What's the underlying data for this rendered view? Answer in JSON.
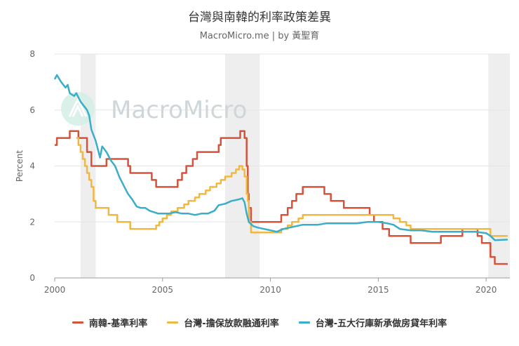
{
  "title": "台灣與南韓的利率政策差異",
  "subtitle": "MacroMicro.me | by 黃聖育",
  "watermark": "MacroMicro",
  "colors": {
    "korea": "#d4533a",
    "tw_secured": "#f0b840",
    "tw_mortgage": "#3aaec8",
    "band": "#eeeeee",
    "grid": "#e6e6e6"
  },
  "chart_data": {
    "type": "line",
    "title": "台灣與南韓的利率政策差異",
    "xlabel": "",
    "ylabel": "Percent",
    "xlim": [
      2000,
      2021.1
    ],
    "ylim": [
      0,
      8
    ],
    "x_ticks": [
      2000,
      2005,
      2010,
      2015,
      2020
    ],
    "y_ticks": [
      0,
      2,
      4,
      6,
      8
    ],
    "shaded_periods": [
      [
        2001.2,
        2001.9
      ],
      [
        2007.9,
        2009.5
      ],
      [
        2020.1,
        2021.1
      ]
    ],
    "legend_position": "bottom",
    "series": [
      {
        "name": "南韓-基準利率",
        "color": "#d4533a",
        "step": true,
        "points": [
          [
            2000.0,
            4.75
          ],
          [
            2000.1,
            5.0
          ],
          [
            2000.7,
            5.25
          ],
          [
            2001.1,
            5.0
          ],
          [
            2001.5,
            4.5
          ],
          [
            2001.7,
            4.0
          ],
          [
            2002.4,
            4.25
          ],
          [
            2003.4,
            4.0
          ],
          [
            2003.5,
            3.75
          ],
          [
            2004.5,
            3.5
          ],
          [
            2004.7,
            3.25
          ],
          [
            2005.7,
            3.5
          ],
          [
            2005.9,
            3.75
          ],
          [
            2006.1,
            4.0
          ],
          [
            2006.4,
            4.25
          ],
          [
            2006.6,
            4.5
          ],
          [
            2007.6,
            4.75
          ],
          [
            2007.7,
            5.0
          ],
          [
            2008.6,
            5.25
          ],
          [
            2008.8,
            5.0
          ],
          [
            2008.9,
            4.0
          ],
          [
            2008.95,
            3.0
          ],
          [
            2009.0,
            2.5
          ],
          [
            2009.1,
            2.0
          ],
          [
            2010.5,
            2.25
          ],
          [
            2010.8,
            2.5
          ],
          [
            2011.0,
            2.75
          ],
          [
            2011.2,
            3.0
          ],
          [
            2011.5,
            3.25
          ],
          [
            2012.5,
            3.0
          ],
          [
            2012.8,
            2.75
          ],
          [
            2013.4,
            2.5
          ],
          [
            2014.6,
            2.25
          ],
          [
            2014.8,
            2.0
          ],
          [
            2015.2,
            1.75
          ],
          [
            2015.5,
            1.5
          ],
          [
            2016.5,
            1.25
          ],
          [
            2017.9,
            1.5
          ],
          [
            2018.9,
            1.75
          ],
          [
            2019.6,
            1.5
          ],
          [
            2019.8,
            1.25
          ],
          [
            2020.2,
            0.75
          ],
          [
            2020.4,
            0.5
          ],
          [
            2021.0,
            0.5
          ]
        ]
      },
      {
        "name": "台灣-擔保放款融通利率",
        "color": "#f0b840",
        "step": true,
        "points": [
          [
            2001.0,
            5.0
          ],
          [
            2001.1,
            4.75
          ],
          [
            2001.2,
            4.5
          ],
          [
            2001.3,
            4.25
          ],
          [
            2001.4,
            4.0
          ],
          [
            2001.5,
            3.75
          ],
          [
            2001.6,
            3.5
          ],
          [
            2001.7,
            3.25
          ],
          [
            2001.8,
            2.75
          ],
          [
            2001.9,
            2.5
          ],
          [
            2002.5,
            2.25
          ],
          [
            2002.9,
            2.0
          ],
          [
            2003.5,
            1.75
          ],
          [
            2004.7,
            1.875
          ],
          [
            2004.85,
            2.0
          ],
          [
            2005.0,
            2.125
          ],
          [
            2005.2,
            2.25
          ],
          [
            2005.4,
            2.375
          ],
          [
            2005.7,
            2.5
          ],
          [
            2006.0,
            2.625
          ],
          [
            2006.2,
            2.75
          ],
          [
            2006.5,
            2.875
          ],
          [
            2006.7,
            3.0
          ],
          [
            2007.0,
            3.125
          ],
          [
            2007.2,
            3.25
          ],
          [
            2007.5,
            3.375
          ],
          [
            2007.7,
            3.5
          ],
          [
            2007.9,
            3.625
          ],
          [
            2008.2,
            3.75
          ],
          [
            2008.4,
            3.875
          ],
          [
            2008.55,
            4.0
          ],
          [
            2008.7,
            3.875
          ],
          [
            2008.8,
            3.625
          ],
          [
            2008.9,
            3.0
          ],
          [
            2008.95,
            2.75
          ],
          [
            2009.0,
            2.0
          ],
          [
            2009.1,
            1.625
          ],
          [
            2010.5,
            1.75
          ],
          [
            2010.8,
            1.875
          ],
          [
            2011.0,
            2.0
          ],
          [
            2011.3,
            2.125
          ],
          [
            2011.5,
            2.25
          ],
          [
            2015.7,
            2.125
          ],
          [
            2016.0,
            2.0
          ],
          [
            2016.3,
            1.875
          ],
          [
            2016.5,
            1.75
          ],
          [
            2020.2,
            1.5
          ],
          [
            2021.0,
            1.5
          ]
        ]
      },
      {
        "name": "台灣-五大行庫新承做房貸年利率",
        "color": "#3aaec8",
        "step": false,
        "points": [
          [
            2000.0,
            7.1
          ],
          [
            2000.1,
            7.25
          ],
          [
            2000.3,
            7.0
          ],
          [
            2000.5,
            6.8
          ],
          [
            2000.6,
            6.9
          ],
          [
            2000.7,
            6.6
          ],
          [
            2000.9,
            6.5
          ],
          [
            2001.0,
            6.6
          ],
          [
            2001.2,
            6.3
          ],
          [
            2001.4,
            6.1
          ],
          [
            2001.5,
            6.0
          ],
          [
            2001.6,
            5.8
          ],
          [
            2001.7,
            5.3
          ],
          [
            2001.9,
            4.9
          ],
          [
            2002.1,
            4.3
          ],
          [
            2002.2,
            4.7
          ],
          [
            2002.4,
            4.5
          ],
          [
            2002.6,
            4.2
          ],
          [
            2002.8,
            4.0
          ],
          [
            2003.0,
            3.6
          ],
          [
            2003.2,
            3.3
          ],
          [
            2003.4,
            3.0
          ],
          [
            2003.6,
            2.8
          ],
          [
            2003.8,
            2.55
          ],
          [
            2004.0,
            2.5
          ],
          [
            2004.2,
            2.5
          ],
          [
            2004.4,
            2.4
          ],
          [
            2004.6,
            2.35
          ],
          [
            2004.8,
            2.3
          ],
          [
            2005.0,
            2.3
          ],
          [
            2005.3,
            2.3
          ],
          [
            2005.6,
            2.35
          ],
          [
            2005.9,
            2.3
          ],
          [
            2006.2,
            2.3
          ],
          [
            2006.5,
            2.25
          ],
          [
            2006.8,
            2.3
          ],
          [
            2007.1,
            2.3
          ],
          [
            2007.4,
            2.4
          ],
          [
            2007.6,
            2.6
          ],
          [
            2007.9,
            2.65
          ],
          [
            2008.2,
            2.75
          ],
          [
            2008.5,
            2.8
          ],
          [
            2008.7,
            2.85
          ],
          [
            2008.8,
            2.7
          ],
          [
            2008.9,
            2.3
          ],
          [
            2009.0,
            2.0
          ],
          [
            2009.2,
            1.85
          ],
          [
            2009.4,
            1.8
          ],
          [
            2009.7,
            1.75
          ],
          [
            2010.0,
            1.7
          ],
          [
            2010.3,
            1.65
          ],
          [
            2010.6,
            1.75
          ],
          [
            2010.9,
            1.8
          ],
          [
            2011.2,
            1.85
          ],
          [
            2011.5,
            1.9
          ],
          [
            2011.8,
            1.9
          ],
          [
            2012.2,
            1.9
          ],
          [
            2012.6,
            1.95
          ],
          [
            2013.0,
            1.95
          ],
          [
            2013.5,
            1.95
          ],
          [
            2014.0,
            1.95
          ],
          [
            2014.5,
            2.0
          ],
          [
            2015.0,
            2.0
          ],
          [
            2015.4,
            1.95
          ],
          [
            2015.7,
            1.9
          ],
          [
            2016.0,
            1.75
          ],
          [
            2016.5,
            1.7
          ],
          [
            2017.0,
            1.7
          ],
          [
            2017.5,
            1.65
          ],
          [
            2018.0,
            1.65
          ],
          [
            2018.5,
            1.65
          ],
          [
            2019.0,
            1.65
          ],
          [
            2019.5,
            1.65
          ],
          [
            2020.0,
            1.6
          ],
          [
            2020.2,
            1.5
          ],
          [
            2020.4,
            1.35
          ],
          [
            2021.0,
            1.37
          ]
        ]
      }
    ]
  }
}
